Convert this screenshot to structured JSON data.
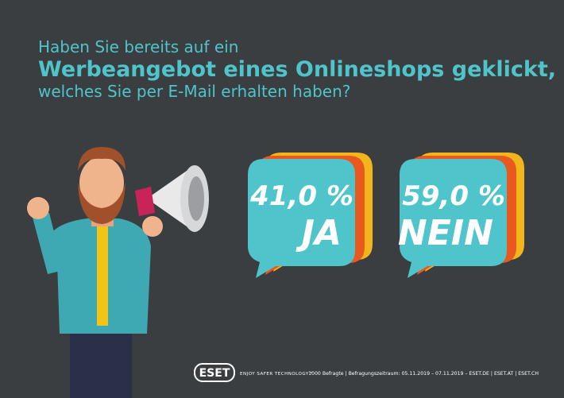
{
  "header": {
    "line1": "Haben Sie bereits auf ein",
    "line2": "Werbeangebot eines Onlineshops geklickt,",
    "line3": "welches Sie per E-Mail erhalten haben?"
  },
  "results": [
    {
      "value": "41,0 %",
      "label": "JA"
    },
    {
      "value": "59,0 %",
      "label": "NEIN"
    }
  ],
  "footer": {
    "logo": "ESET",
    "tagline": "ENJOY SAFER TECHNOLOGY™",
    "note": "1000 Befragte | Befragungszeitraum: 05.11.2019 – 07.11.2019 – ESET.DE | ESET.AT | ESET.CH"
  }
}
